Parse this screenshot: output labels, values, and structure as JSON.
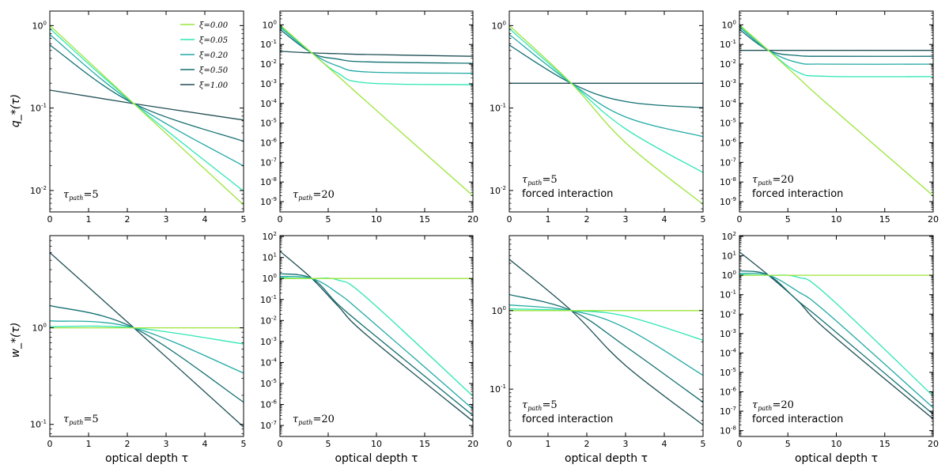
{
  "figure": {
    "row_labels": [
      "q_*(τ)",
      "w_*(τ)"
    ],
    "x_label": "optical depth τ"
  },
  "legend": [
    {
      "label": "ξ=0.00",
      "color": "#9be53a"
    },
    {
      "label": "ξ=0.05",
      "color": "#2ee6b4"
    },
    {
      "label": "ξ=0.20",
      "color": "#22a9a5"
    },
    {
      "label": "ξ=0.50",
      "color": "#136f72"
    },
    {
      "label": "ξ=1.00",
      "color": "#1f4f55"
    }
  ],
  "chart_data": [
    {
      "type": "line",
      "panel": "q-tau5",
      "annotation": [
        "τ_path=5"
      ],
      "xlim": [
        0,
        5
      ],
      "xticks": [
        0,
        1,
        2,
        3,
        4,
        5
      ],
      "yscale": "log",
      "ylim": [
        0.0055,
        1.5
      ],
      "yticks": [
        0.01,
        0.1,
        1
      ],
      "yticklabels": [
        "10^-2",
        "10^-1",
        "10^0"
      ],
      "x": [
        0,
        2.17,
        5
      ],
      "series": [
        {
          "name": "ξ=0.00",
          "values": [
            1.0,
            0.113,
            0.0067
          ]
        },
        {
          "name": "ξ=0.05",
          "values": [
            0.92,
            0.113,
            0.0098
          ]
        },
        {
          "name": "ξ=0.20",
          "values": [
            0.78,
            0.113,
            0.0198
          ]
        },
        {
          "name": "ξ=0.50",
          "values": [
            0.58,
            0.113,
            0.0395
          ]
        },
        {
          "name": "ξ=1.00",
          "values": [
            0.165,
            0.113,
            0.0715
          ]
        }
      ]
    },
    {
      "type": "line",
      "panel": "q-tau20",
      "annotation": [
        "τ_path=20"
      ],
      "xlim": [
        0,
        20
      ],
      "xticks": [
        0,
        5,
        10,
        15,
        20
      ],
      "yscale": "log",
      "ylim": [
        3e-10,
        5
      ],
      "yticks": [
        1e-09,
        1e-08,
        1e-07,
        1e-06,
        1e-05,
        0.0001,
        0.001,
        0.01,
        0.1,
        1
      ],
      "yticklabels": [
        "10^-9",
        "10^-8",
        "10^-7",
        "10^-6",
        "10^-5",
        "10^-4",
        "10^-3",
        "10^-2",
        "10^-1",
        "10^0"
      ],
      "x": [
        0,
        3.3,
        6,
        9,
        20
      ],
      "series": [
        {
          "name": "ξ=0.00",
          "values": [
            1.0,
            0.037,
            0.0025,
            0.00012,
            2e-09
          ]
        },
        {
          "name": "ξ=0.05",
          "values": [
            0.92,
            0.037,
            0.0035,
            0.0011,
            0.0009
          ]
        },
        {
          "name": "ξ=0.20",
          "values": [
            0.78,
            0.037,
            0.008,
            0.004,
            0.0034
          ]
        },
        {
          "name": "ξ=0.50",
          "values": [
            0.58,
            0.037,
            0.018,
            0.013,
            0.011
          ]
        },
        {
          "name": "ξ=1.00",
          "values": [
            0.045,
            0.037,
            0.034,
            0.031,
            0.025
          ]
        }
      ]
    },
    {
      "type": "line",
      "panel": "q-tau5-forced",
      "annotation": [
        "τ_path=5",
        "forced interaction"
      ],
      "xlim": [
        0,
        5
      ],
      "xticks": [
        0,
        1,
        2,
        3,
        4,
        5
      ],
      "yscale": "log",
      "ylim": [
        0.0055,
        1.5
      ],
      "yticks": [
        0.01,
        0.1,
        1
      ],
      "yticklabels": [
        "10^-2",
        "10^-1",
        "10^0"
      ],
      "x": [
        0,
        1.6,
        3,
        5
      ],
      "series": [
        {
          "name": "ξ=0.00",
          "values": [
            1.0,
            0.2,
            0.038,
            0.0068
          ]
        },
        {
          "name": "ξ=0.05",
          "values": [
            0.92,
            0.2,
            0.056,
            0.0165
          ]
        },
        {
          "name": "ξ=0.20",
          "values": [
            0.78,
            0.2,
            0.078,
            0.045
          ]
        },
        {
          "name": "ξ=0.50",
          "values": [
            0.58,
            0.2,
            0.12,
            0.101
          ]
        },
        {
          "name": "ξ=1.00",
          "values": [
            0.2,
            0.2,
            0.2,
            0.2
          ]
        }
      ]
    },
    {
      "type": "line",
      "panel": "q-tau20-forced",
      "annotation": [
        "τ_path=20",
        "forced interaction"
      ],
      "xlim": [
        0,
        20
      ],
      "xticks": [
        0,
        5,
        10,
        15,
        20
      ],
      "yscale": "log",
      "ylim": [
        3e-10,
        5
      ],
      "yticks": [
        1e-09,
        1e-08,
        1e-07,
        1e-06,
        1e-05,
        0.0001,
        0.001,
        0.01,
        0.1,
        1
      ],
      "yticklabels": [
        "10^-9",
        "10^-8",
        "10^-7",
        "10^-6",
        "10^-5",
        "10^-4",
        "10^-3",
        "10^-2",
        "10^-1",
        "10^0"
      ],
      "x": [
        0,
        3,
        6,
        9,
        20
      ],
      "series": [
        {
          "name": "ξ=0.00",
          "values": [
            1.0,
            0.05,
            0.0022,
            0.0001,
            2e-09
          ]
        },
        {
          "name": "ξ=0.05",
          "values": [
            0.92,
            0.05,
            0.004,
            0.0024,
            0.0023
          ]
        },
        {
          "name": "ξ=0.20",
          "values": [
            0.78,
            0.05,
            0.012,
            0.01,
            0.01
          ]
        },
        {
          "name": "ξ=0.50",
          "values": [
            0.58,
            0.05,
            0.027,
            0.025,
            0.025
          ]
        },
        {
          "name": "ξ=1.00",
          "values": [
            0.05,
            0.05,
            0.05,
            0.05,
            0.05
          ]
        }
      ]
    },
    {
      "type": "line",
      "panel": "w-tau5",
      "annotation": [
        "τ_path=5"
      ],
      "xlim": [
        0,
        5
      ],
      "xticks": [
        0,
        1,
        2,
        3,
        4,
        5
      ],
      "yscale": "log",
      "ylim": [
        0.075,
        9
      ],
      "yticks": [
        0.1,
        1
      ],
      "yticklabels": [
        "10^-1",
        "10^0"
      ],
      "x": [
        0,
        2.17,
        5
      ],
      "series": [
        {
          "name": "ξ=0.00",
          "values": [
            1.0,
            1.0,
            1.0
          ]
        },
        {
          "name": "ξ=0.05",
          "values": [
            1.03,
            1.0,
            0.68
          ]
        },
        {
          "name": "ξ=0.20",
          "values": [
            1.18,
            1.0,
            0.34
          ]
        },
        {
          "name": "ξ=0.50",
          "values": [
            1.7,
            1.0,
            0.17
          ]
        },
        {
          "name": "ξ=1.00",
          "values": [
            6.0,
            1.0,
            0.094
          ]
        }
      ]
    },
    {
      "type": "line",
      "panel": "w-tau20",
      "annotation": [
        "τ_path=20"
      ],
      "xlim": [
        0,
        20
      ],
      "xticks": [
        0,
        5,
        10,
        15,
        20
      ],
      "yscale": "log",
      "ylim": [
        3e-08,
        110
      ],
      "yticks": [
        1e-07,
        1e-06,
        1e-05,
        0.0001,
        0.001,
        0.01,
        0.1,
        1,
        10,
        100
      ],
      "yticklabels": [
        "10^-7",
        "10^-6",
        "10^-5",
        "10^-4",
        "10^-3",
        "10^-2",
        "10^-1",
        "10^0",
        "10^1",
        "10^2"
      ],
      "x": [
        0,
        3.3,
        6,
        9,
        20
      ],
      "series": [
        {
          "name": "ξ=0.00",
          "values": [
            1.0,
            1.0,
            1.0,
            1.0,
            1.0
          ]
        },
        {
          "name": "ξ=0.05",
          "values": [
            1.08,
            1.0,
            0.85,
            0.12,
            2.5e-06
          ]
        },
        {
          "name": "ξ=0.20",
          "values": [
            1.25,
            1.0,
            0.2,
            0.015,
            6e-07
          ]
        },
        {
          "name": "ξ=0.50",
          "values": [
            1.7,
            1.0,
            0.06,
            0.004,
            3e-07
          ]
        },
        {
          "name": "ξ=1.00",
          "values": [
            20,
            1.0,
            0.05,
            0.002,
            1.6e-07
          ]
        }
      ]
    },
    {
      "type": "line",
      "panel": "w-tau5-forced",
      "annotation": [
        "τ_path=5",
        "forced interaction"
      ],
      "xlim": [
        0,
        5
      ],
      "xticks": [
        0,
        1,
        2,
        3,
        4,
        5
      ],
      "yscale": "log",
      "ylim": [
        0.025,
        9
      ],
      "yticks": [
        0.1,
        1
      ],
      "yticklabels": [
        "10^-1",
        "10^0"
      ],
      "x": [
        0,
        1.6,
        3,
        5
      ],
      "series": [
        {
          "name": "ξ=0.00",
          "values": [
            1.0,
            1.0,
            1.0,
            1.0
          ]
        },
        {
          "name": "ξ=0.05",
          "values": [
            1.05,
            1.0,
            0.85,
            0.42
          ]
        },
        {
          "name": "ξ=0.20",
          "values": [
            1.18,
            1.0,
            0.6,
            0.15
          ]
        },
        {
          "name": "ξ=0.50",
          "values": [
            1.6,
            1.0,
            0.35,
            0.068
          ]
        },
        {
          "name": "ξ=1.00",
          "values": [
            4.5,
            1.0,
            0.2,
            0.035
          ]
        }
      ]
    },
    {
      "type": "line",
      "panel": "w-tau20-forced",
      "annotation": [
        "τ_path=20",
        "forced interaction"
      ],
      "xlim": [
        0,
        20
      ],
      "xticks": [
        0,
        5,
        10,
        15,
        20
      ],
      "yscale": "log",
      "ylim": [
        5e-09,
        110
      ],
      "yticks": [
        1e-08,
        1e-07,
        1e-06,
        1e-05,
        0.0001,
        0.001,
        0.01,
        0.1,
        1,
        10,
        100
      ],
      "yticklabels": [
        "10^-8",
        "10^-7",
        "10^-6",
        "10^-5",
        "10^-4",
        "10^-3",
        "10^-2",
        "10^-1",
        "10^0",
        "10^1",
        "10^2"
      ],
      "x": [
        0,
        3,
        6,
        9,
        20
      ],
      "series": [
        {
          "name": "ξ=0.00",
          "values": [
            1.0,
            1.0,
            1.0,
            1.0,
            1.0
          ]
        },
        {
          "name": "ξ=0.05",
          "values": [
            1.08,
            1.0,
            0.8,
            0.1,
            6e-07
          ]
        },
        {
          "name": "ξ=0.20",
          "values": [
            1.25,
            1.0,
            0.15,
            0.012,
            1.5e-07
          ]
        },
        {
          "name": "ξ=0.50",
          "values": [
            1.7,
            1.0,
            0.05,
            0.003,
            7e-08
          ]
        },
        {
          "name": "ξ=1.00",
          "values": [
            16,
            1.0,
            0.05,
            0.0015,
            4e-08
          ]
        }
      ]
    }
  ]
}
